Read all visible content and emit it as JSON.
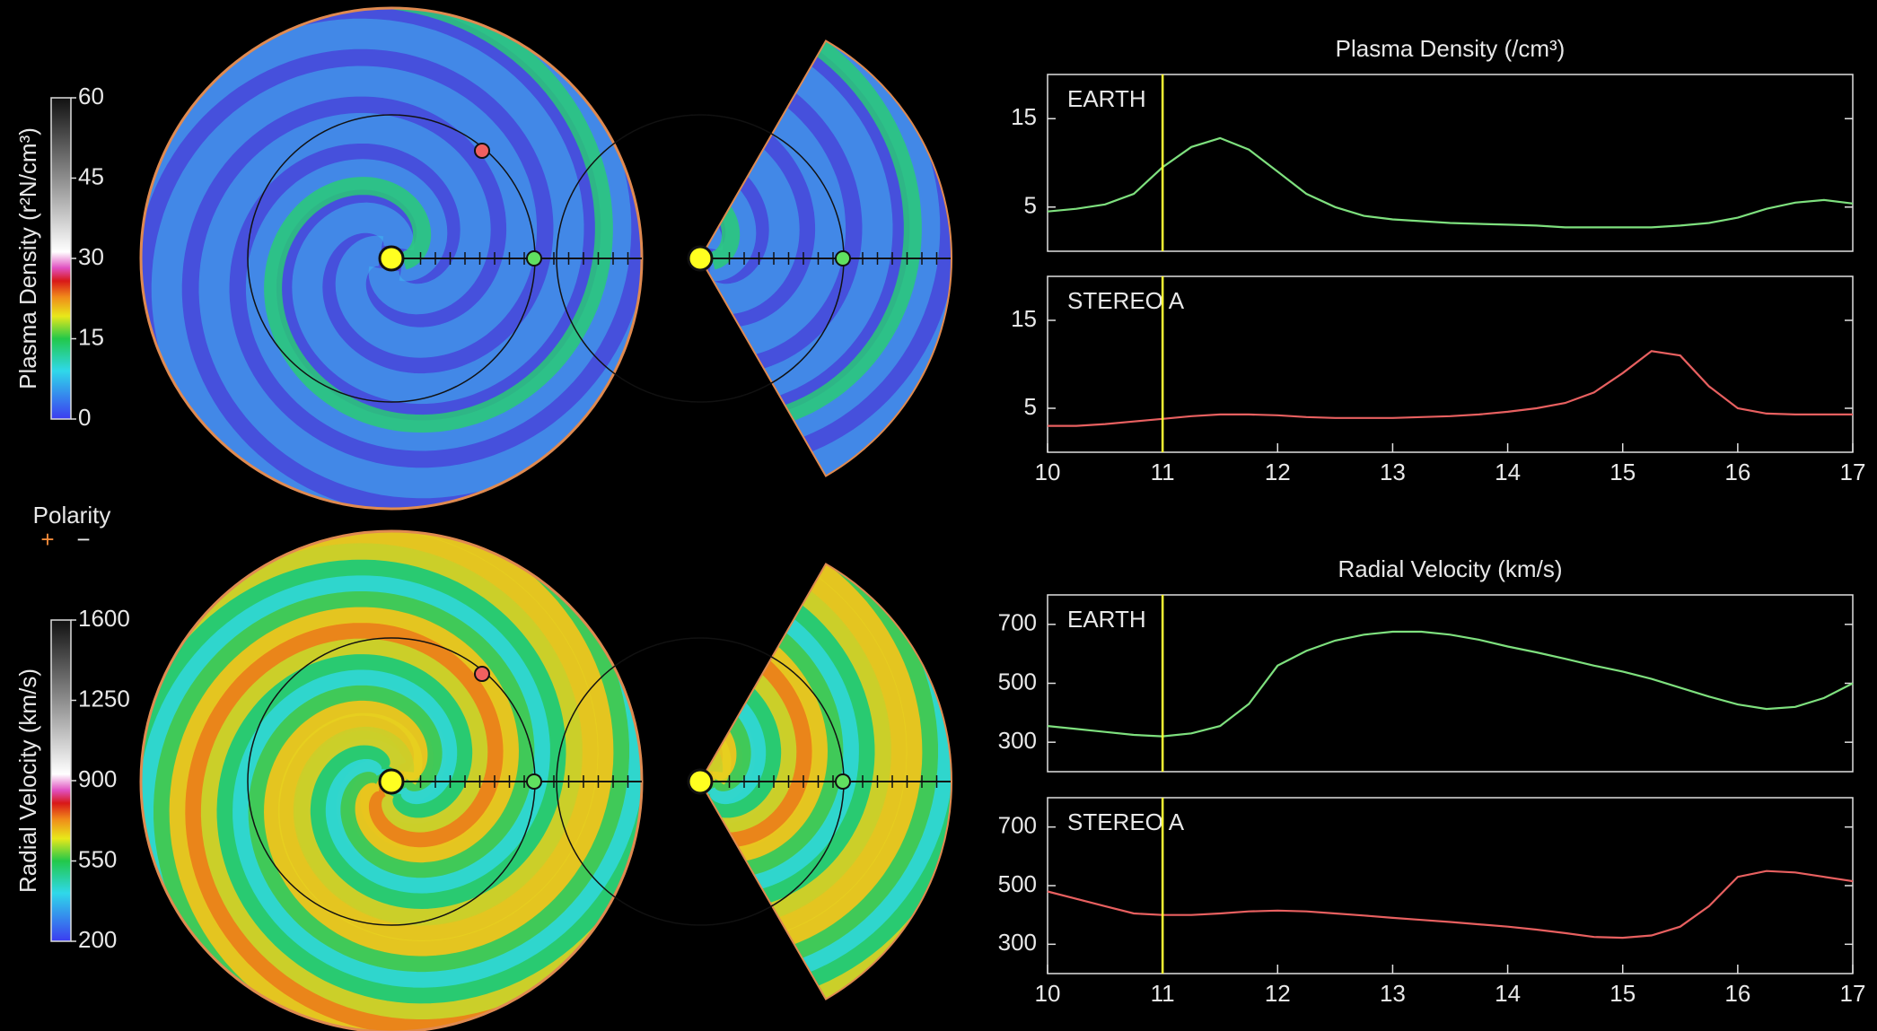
{
  "colorbars": [
    {
      "label": "Plasma Density (r²N/cm³)",
      "clim": [
        0,
        60
      ],
      "ticks": [
        0,
        15,
        30,
        45,
        60
      ]
    },
    {
      "label": "Radial Velocity (km/s)",
      "clim": [
        200,
        1600
      ],
      "ticks": [
        200,
        550,
        900,
        1250,
        1600
      ]
    }
  ],
  "polarity": {
    "title": "Polarity",
    "plus": "+",
    "minus": "−"
  },
  "chart_data": [
    {
      "type": "line",
      "title": "Plasma Density (/cm³)",
      "x": [
        10,
        10.25,
        10.5,
        10.75,
        11,
        11.25,
        11.5,
        11.75,
        12,
        12.25,
        12.5,
        12.75,
        13,
        13.25,
        13.5,
        13.75,
        14,
        14.25,
        14.5,
        14.75,
        15,
        15.25,
        15.5,
        15.75,
        16,
        16.25,
        16.5,
        16.75,
        17
      ],
      "series": [
        {
          "name": "EARTH",
          "color": "#7ee07e",
          "values": [
            4.5,
            4.8,
            5.3,
            6.5,
            9.5,
            11.8,
            12.8,
            11.5,
            9,
            6.5,
            5,
            4,
            3.6,
            3.4,
            3.2,
            3.1,
            3,
            2.9,
            2.7,
            2.7,
            2.7,
            2.7,
            2.9,
            3.2,
            3.8,
            4.8,
            5.5,
            5.8,
            5.4
          ]
        }
      ],
      "xlim": [
        10,
        17
      ],
      "ylim": [
        0,
        20
      ],
      "yticks": [
        5,
        15
      ],
      "marker_x": 11,
      "marker_color": "#ffff33"
    },
    {
      "type": "line",
      "x": [
        10,
        10.25,
        10.5,
        10.75,
        11,
        11.25,
        11.5,
        11.75,
        12,
        12.25,
        12.5,
        12.75,
        13,
        13.25,
        13.5,
        13.75,
        14,
        14.25,
        14.5,
        14.75,
        15,
        15.25,
        15.5,
        15.75,
        16,
        16.25,
        16.5,
        16.75,
        17
      ],
      "series": [
        {
          "name": "STEREO A",
          "color": "#e86060",
          "values": [
            3,
            3,
            3.2,
            3.5,
            3.8,
            4.1,
            4.3,
            4.3,
            4.2,
            4,
            3.9,
            3.9,
            3.9,
            4,
            4.1,
            4.3,
            4.6,
            5,
            5.6,
            6.8,
            9,
            11.5,
            11,
            7.5,
            5,
            4.4,
            4.3,
            4.3,
            4.3
          ]
        }
      ],
      "xlim": [
        10,
        17
      ],
      "ylim": [
        0,
        20
      ],
      "yticks": [
        5,
        15
      ],
      "xticks": [
        10,
        11,
        12,
        13,
        14,
        15,
        16,
        17
      ],
      "marker_x": 11,
      "marker_color": "#ffff33"
    },
    {
      "type": "line",
      "title": "Radial Velocity (km/s)",
      "x": [
        10,
        10.25,
        10.5,
        10.75,
        11,
        11.25,
        11.5,
        11.75,
        12,
        12.25,
        12.5,
        12.75,
        13,
        13.25,
        13.5,
        13.75,
        14,
        14.25,
        14.5,
        14.75,
        15,
        15.25,
        15.5,
        15.75,
        16,
        16.25,
        16.5,
        16.75,
        17
      ],
      "series": [
        {
          "name": "EARTH",
          "color": "#7ee07e",
          "values": [
            355,
            345,
            335,
            325,
            320,
            330,
            355,
            430,
            560,
            610,
            645,
            665,
            675,
            675,
            665,
            648,
            625,
            605,
            583,
            560,
            540,
            515,
            485,
            455,
            428,
            413,
            420,
            450,
            500
          ]
        }
      ],
      "xlim": [
        10,
        17
      ],
      "ylim": [
        200,
        800
      ],
      "yticks": [
        300,
        500,
        700
      ],
      "marker_x": 11,
      "marker_color": "#ffff33"
    },
    {
      "type": "line",
      "x": [
        10,
        10.25,
        10.5,
        10.75,
        11,
        11.25,
        11.5,
        11.75,
        12,
        12.25,
        12.5,
        12.75,
        13,
        13.25,
        13.5,
        13.75,
        14,
        14.25,
        14.5,
        14.75,
        15,
        15.25,
        15.5,
        15.75,
        16,
        16.25,
        16.5,
        16.75,
        17
      ],
      "series": [
        {
          "name": "STEREO A",
          "color": "#e86060",
          "values": [
            480,
            455,
            430,
            405,
            400,
            400,
            405,
            412,
            415,
            412,
            405,
            398,
            390,
            383,
            376,
            368,
            360,
            350,
            338,
            325,
            322,
            330,
            360,
            430,
            530,
            550,
            545,
            530,
            515
          ]
        }
      ],
      "xlim": [
        10,
        17
      ],
      "ylim": [
        200,
        800
      ],
      "yticks": [
        300,
        500,
        700
      ],
      "xticks": [
        10,
        11,
        12,
        13,
        14,
        15,
        16,
        17
      ],
      "marker_x": 11,
      "marker_color": "#ffff33"
    }
  ]
}
